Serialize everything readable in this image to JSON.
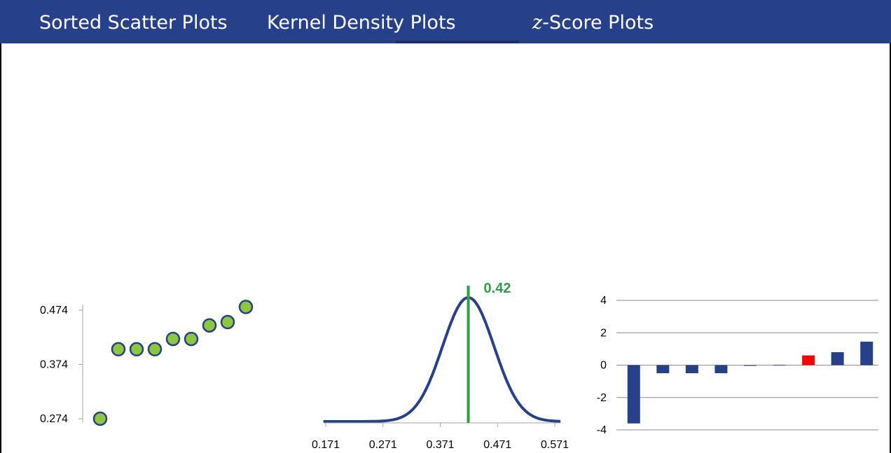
{
  "tabs": [
    {
      "label": "Sorted Scatter Plots"
    },
    {
      "label": "Kernel Density Plots"
    },
    {
      "prefix": "z",
      "label": "-Score Plots"
    }
  ],
  "colors": {
    "header": "#26418a",
    "point_fill": "#8dc63f",
    "point_stroke": "#26418a",
    "curve": "#26418a",
    "marker": "#2ea043",
    "bar": "#26418a",
    "bar_highlight": "#ff0000"
  },
  "chart_data": [
    {
      "type": "scatter",
      "ylim": [
        0.274,
        0.474
      ],
      "yticks": [
        "0.274",
        "0.374",
        "0.474"
      ],
      "x": [
        1,
        2,
        3,
        4,
        5,
        6,
        7,
        8,
        9
      ],
      "y": [
        0.274,
        0.402,
        0.402,
        0.402,
        0.421,
        0.421,
        0.446,
        0.452,
        0.48
      ]
    },
    {
      "type": "line",
      "xlim": [
        0.171,
        0.571
      ],
      "xticks": [
        "0.171",
        "0.271",
        "0.371",
        "0.471",
        "0.571"
      ],
      "curve": {
        "mean": 0.42,
        "sd": 0.045
      },
      "marker": {
        "x": 0.42,
        "label": "0.42"
      }
    },
    {
      "type": "bar",
      "ylim": [
        -4,
        4
      ],
      "yticks": [
        "4",
        "2",
        "0",
        "-2",
        "-4"
      ],
      "grid": true,
      "values": [
        -3.6,
        -0.5,
        -0.5,
        -0.5,
        0,
        0.02,
        0.6,
        0.8,
        1.45
      ],
      "highlight_index": 6
    }
  ]
}
